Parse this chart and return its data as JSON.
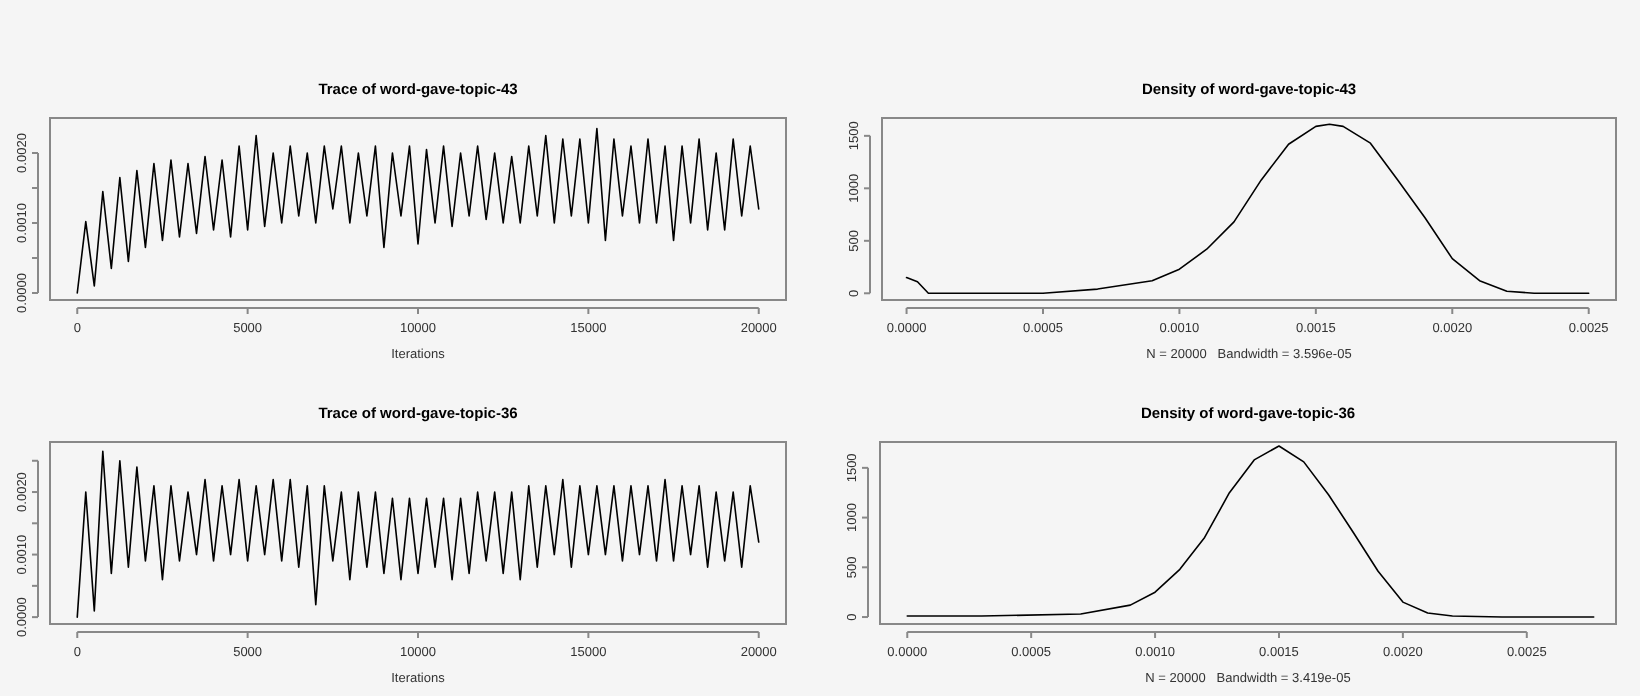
{
  "chart_data": [
    {
      "type": "line",
      "title": "Trace of word-gave-topic-43",
      "xlabel": "Iterations",
      "xlim": [
        -800,
        20800
      ],
      "ylim": [
        -0.0001,
        0.0025
      ],
      "xticks": [
        0,
        5000,
        10000,
        15000,
        20000
      ],
      "yticks": [
        {
          "value": 0,
          "label": "0.0000"
        },
        {
          "value": 0.0005,
          "label": null
        },
        {
          "value": 0.001,
          "label": "0.0010"
        },
        {
          "value": 0.0015,
          "label": null
        },
        {
          "value": 0.002,
          "label": "0.0020"
        }
      ],
      "series": [
        {
          "color": "#000000",
          "x": [
            0,
            250,
            500,
            750,
            1000,
            1250,
            1500,
            1750,
            2000,
            2250,
            2500,
            2750,
            3000,
            3250,
            3500,
            3750,
            4000,
            4250,
            4500,
            4750,
            5000,
            5250,
            5500,
            5750,
            6000,
            6250,
            6500,
            6750,
            7000,
            7250,
            7500,
            7750,
            8000,
            8250,
            8500,
            8750,
            9000,
            9250,
            9500,
            9750,
            10000,
            10250,
            10500,
            10750,
            11000,
            11250,
            11500,
            11750,
            12000,
            12250,
            12500,
            12750,
            13000,
            13250,
            13500,
            13750,
            14000,
            14250,
            14500,
            14750,
            15000,
            15250,
            15500,
            15750,
            16000,
            16250,
            16500,
            16750,
            17000,
            17250,
            17500,
            17750,
            18000,
            18250,
            18500,
            18750,
            19000,
            19250,
            19500,
            19750,
            20000
          ],
          "values": [
            0,
            0.00102,
            0.0001,
            0.00145,
            0.00035,
            0.00165,
            0.00045,
            0.00175,
            0.00065,
            0.00185,
            0.00075,
            0.0019,
            0.0008,
            0.00185,
            0.00085,
            0.00195,
            0.0009,
            0.0019,
            0.0008,
            0.0021,
            0.0009,
            0.00225,
            0.00095,
            0.002,
            0.001,
            0.0021,
            0.0011,
            0.002,
            0.001,
            0.0021,
            0.0012,
            0.0021,
            0.001,
            0.002,
            0.0011,
            0.0021,
            0.00065,
            0.002,
            0.0011,
            0.0021,
            0.0007,
            0.00205,
            0.001,
            0.0021,
            0.00095,
            0.002,
            0.0011,
            0.0021,
            0.00105,
            0.002,
            0.001,
            0.00195,
            0.001,
            0.0021,
            0.0011,
            0.00225,
            0.001,
            0.0022,
            0.0011,
            0.0022,
            0.001,
            0.00235,
            0.00075,
            0.0022,
            0.0011,
            0.0021,
            0.001,
            0.0022,
            0.001,
            0.0021,
            0.00075,
            0.0021,
            0.001,
            0.0022,
            0.0009,
            0.002,
            0.0009,
            0.0022,
            0.0011,
            0.0021,
            0.0012
          ]
        }
      ]
    },
    {
      "type": "line",
      "title": "Density of word-gave-topic-43",
      "xlabel": "N = 20000   Bandwidth = 3.596e-05",
      "xlim": [
        -9e-05,
        0.0026
      ],
      "ylim": [
        -64,
        1670
      ],
      "xticks": [
        {
          "value": 0,
          "label": "0.0000"
        },
        {
          "value": 0.0005,
          "label": "0.0005"
        },
        {
          "value": 0.001,
          "label": "0.0010"
        },
        {
          "value": 0.0015,
          "label": "0.0015"
        },
        {
          "value": 0.002,
          "label": "0.0020"
        },
        {
          "value": 0.0025,
          "label": "0.0025"
        }
      ],
      "yticks": [
        0,
        500,
        1000,
        1500
      ],
      "series": [
        {
          "color": "#000000",
          "x": [
            0,
            4e-05,
            8e-05,
            0.0002,
            0.0005,
            0.0007,
            0.0009,
            0.001,
            0.0011,
            0.0012,
            0.0013,
            0.0014,
            0.0015,
            0.00155,
            0.0016,
            0.0017,
            0.0018,
            0.0019,
            0.002,
            0.0021,
            0.0022,
            0.0023,
            0.0025
          ],
          "values": [
            150,
            110,
            0,
            0,
            0,
            40,
            120,
            230,
            420,
            680,
            1080,
            1420,
            1590,
            1610,
            1590,
            1430,
            1080,
            720,
            330,
            120,
            20,
            0,
            0
          ]
        }
      ]
    },
    {
      "type": "line",
      "title": "Trace of word-gave-topic-36",
      "xlabel": "Iterations",
      "xlim": [
        -800,
        20800
      ],
      "ylim": [
        -0.00011,
        0.0028
      ],
      "xticks": [
        0,
        5000,
        10000,
        15000,
        20000
      ],
      "yticks": [
        {
          "value": 0,
          "label": "0.0000"
        },
        {
          "value": 0.0005,
          "label": null
        },
        {
          "value": 0.001,
          "label": "0.0010"
        },
        {
          "value": 0.0015,
          "label": null
        },
        {
          "value": 0.002,
          "label": "0.0020"
        },
        {
          "value": 0.0025,
          "label": null
        }
      ],
      "series": [
        {
          "color": "#000000",
          "x": [
            0,
            250,
            500,
            750,
            1000,
            1250,
            1500,
            1750,
            2000,
            2250,
            2500,
            2750,
            3000,
            3250,
            3500,
            3750,
            4000,
            4250,
            4500,
            4750,
            5000,
            5250,
            5500,
            5750,
            6000,
            6250,
            6500,
            6750,
            7000,
            7250,
            7500,
            7750,
            8000,
            8250,
            8500,
            8750,
            9000,
            9250,
            9500,
            9750,
            10000,
            10250,
            10500,
            10750,
            11000,
            11250,
            11500,
            11750,
            12000,
            12250,
            12500,
            12750,
            13000,
            13250,
            13500,
            13750,
            14000,
            14250,
            14500,
            14750,
            15000,
            15250,
            15500,
            15750,
            16000,
            16250,
            16500,
            16750,
            17000,
            17250,
            17500,
            17750,
            18000,
            18250,
            18500,
            18750,
            19000,
            19250,
            19500,
            19750,
            20000
          ],
          "values": [
            0,
            0.002,
            0.0001,
            0.00265,
            0.0007,
            0.0025,
            0.0008,
            0.0024,
            0.0009,
            0.0021,
            0.0006,
            0.0021,
            0.0009,
            0.002,
            0.001,
            0.0022,
            0.0009,
            0.0021,
            0.001,
            0.0022,
            0.0009,
            0.0021,
            0.001,
            0.0022,
            0.0009,
            0.0022,
            0.0008,
            0.0021,
            0.0002,
            0.0021,
            0.0009,
            0.002,
            0.0006,
            0.002,
            0.0008,
            0.002,
            0.0007,
            0.0019,
            0.0006,
            0.0019,
            0.0007,
            0.0019,
            0.0008,
            0.0019,
            0.0006,
            0.0019,
            0.0007,
            0.002,
            0.0009,
            0.002,
            0.0007,
            0.002,
            0.0006,
            0.0021,
            0.0008,
            0.0021,
            0.001,
            0.0022,
            0.0008,
            0.0021,
            0.001,
            0.0021,
            0.001,
            0.0021,
            0.0009,
            0.0021,
            0.001,
            0.0021,
            0.0009,
            0.0022,
            0.0009,
            0.0021,
            0.001,
            0.0021,
            0.0008,
            0.002,
            0.0009,
            0.002,
            0.0008,
            0.0021,
            0.0012
          ]
        }
      ]
    },
    {
      "type": "line",
      "title": "Density of word-gave-topic-36",
      "xlabel": "N = 20000   Bandwidth = 3.419e-05",
      "xlim": [
        -0.00011,
        0.00286
      ],
      "ylim": [
        -70,
        1760
      ],
      "xticks": [
        {
          "value": 0,
          "label": "0.0000"
        },
        {
          "value": 0.0005,
          "label": "0.0005"
        },
        {
          "value": 0.001,
          "label": "0.0010"
        },
        {
          "value": 0.0015,
          "label": "0.0015"
        },
        {
          "value": 0.002,
          "label": "0.0020"
        },
        {
          "value": 0.0025,
          "label": "0.0025"
        }
      ],
      "yticks": [
        0,
        500,
        1000,
        1500
      ],
      "series": [
        {
          "color": "#000000",
          "x": [
            0,
            0.0003,
            0.0007,
            0.0009,
            0.001,
            0.0011,
            0.0012,
            0.0013,
            0.0014,
            0.0015,
            0.0016,
            0.0017,
            0.0018,
            0.0019,
            0.002,
            0.0021,
            0.0022,
            0.0024,
            0.00277
          ],
          "values": [
            10,
            10,
            30,
            120,
            250,
            480,
            800,
            1250,
            1580,
            1720,
            1560,
            1230,
            850,
            460,
            150,
            40,
            10,
            0,
            0
          ]
        }
      ]
    }
  ]
}
